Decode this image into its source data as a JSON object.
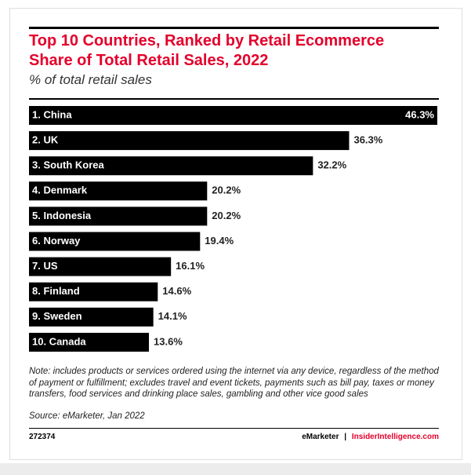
{
  "chart_data": {
    "type": "bar",
    "orientation": "horizontal",
    "title": "Top 10 Countries, Ranked by Retail Ecommerce Share of Total Retail Sales, 2022",
    "subtitle": "% of total retail sales",
    "categories": [
      "1. China",
      "2. UK",
      "3. South Korea",
      "4. Denmark",
      "5. Indonesia",
      "6. Norway",
      "7. US",
      "8. Finland",
      "9. Sweden",
      "10. Canada"
    ],
    "values": [
      46.3,
      36.3,
      32.2,
      20.2,
      20.2,
      19.4,
      16.1,
      14.6,
      14.1,
      13.6
    ],
    "value_labels": [
      "46.3%",
      "36.3%",
      "32.2%",
      "20.2%",
      "20.2%",
      "19.4%",
      "16.1%",
      "14.6%",
      "14.1%",
      "13.6%"
    ],
    "color": "#000000",
    "title_color": "#e4002b",
    "note": "Note: includes products or services ordered using the internet via any device, regardless of the method of payment or fulfillment; excludes travel and event tickets, payments such as bill pay, taxes or money transfers, food services and drinking place sales, gambling and other vice good sales",
    "source": "Source: eMarketer, Jan 2022",
    "chart_id": "272374",
    "brand": "eMarketer",
    "separator": "|",
    "site": "InsiderIntelligence.com"
  }
}
